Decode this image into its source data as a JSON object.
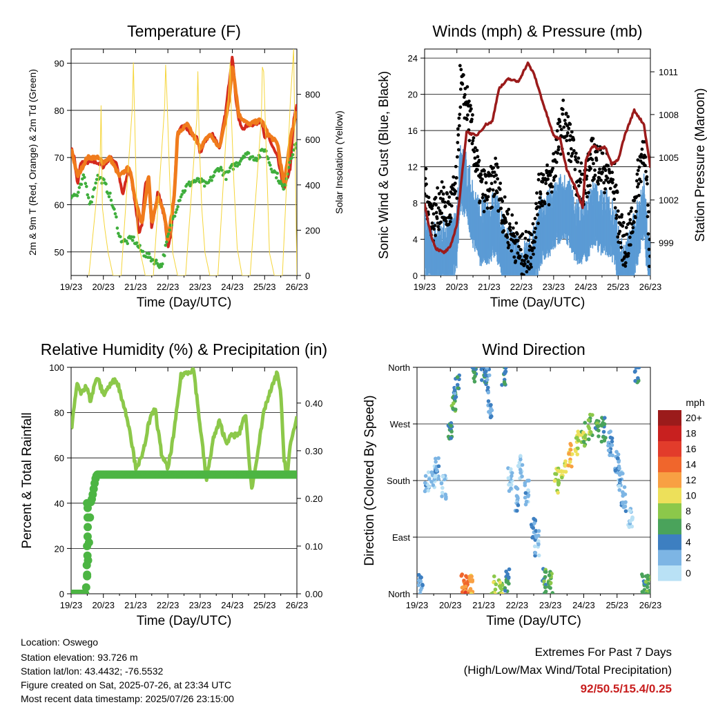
{
  "x_ticks": [
    "19/23",
    "20/23",
    "21/23",
    "22/23",
    "23/23",
    "24/23",
    "25/23",
    "26/23"
  ],
  "x_axis_label": "Time (Day/UTC)",
  "colors": {
    "temp_2m": "#d42a1e",
    "temp_9m": "#f07b1c",
    "dewpoint": "#3fae3c",
    "solar": "#f5d53a",
    "wind": "#5b9bd5",
    "gust": "#000000",
    "pressure": "#9b1b1b",
    "rh": "#8cc84a",
    "precip": "#4cb543",
    "extremes": "#c81e1e"
  },
  "chart_data": [
    {
      "type": "line",
      "title": "Temperature (F)",
      "xlabel": "Time (Day/UTC)",
      "ylabel": "2m & 9m T (Red, Orange) & 2m Td (Green)",
      "y2label": "Solar Insolation (Yellow)",
      "xlim": [
        0,
        7
      ],
      "ylim": [
        45,
        93
      ],
      "y2lim": [
        0,
        1000
      ],
      "yticks": [
        50,
        60,
        70,
        80,
        90
      ],
      "y2ticks": [
        0,
        200,
        400,
        600,
        800
      ],
      "series": [
        {
          "name": "2m T",
          "key": "temp_2m",
          "axis": "y",
          "x": [
            0,
            0.1,
            0.2,
            0.3,
            0.5,
            0.8,
            1,
            1.2,
            1.4,
            1.6,
            1.8,
            2,
            2.1,
            2.2,
            2.3,
            2.4,
            2.5,
            2.7,
            2.9,
            3,
            3.1,
            3.2,
            3.3,
            3.5,
            3.7,
            3.9,
            4,
            4.2,
            4.4,
            4.6,
            4.8,
            5,
            5.1,
            5.2,
            5.3,
            5.5,
            5.7,
            5.9,
            6,
            6.1,
            6.2,
            6.4,
            6.6,
            6.8,
            6.9,
            7
          ],
          "values": [
            72,
            70,
            64,
            69,
            69,
            69,
            68,
            70,
            69,
            62,
            68,
            60,
            54,
            56,
            64,
            66,
            55,
            63,
            57,
            51,
            54,
            63,
            75,
            77,
            75,
            74,
            71,
            74,
            75,
            72,
            80,
            92,
            83,
            78,
            76,
            77,
            77,
            78,
            74,
            75,
            73,
            70,
            63,
            68,
            78,
            81
          ]
        },
        {
          "name": "9m T",
          "key": "temp_9m",
          "axis": "y",
          "x": [
            0,
            0.2,
            0.5,
            0.8,
            1,
            1.2,
            1.5,
            1.8,
            2,
            2.2,
            2.4,
            2.5,
            2.7,
            2.9,
            3,
            3.2,
            3.3,
            3.6,
            4,
            4.3,
            4.6,
            4.9,
            5,
            5.2,
            5.5,
            5.9,
            6.1,
            6.4,
            6.6,
            6.8,
            7
          ],
          "values": [
            72,
            66,
            70,
            70,
            69,
            70,
            66,
            68,
            61,
            56,
            66,
            56,
            62,
            58,
            52,
            62,
            75,
            77,
            72,
            75,
            72,
            82,
            90,
            79,
            77,
            78,
            75,
            73,
            64,
            74,
            80
          ]
        },
        {
          "name": "2m Td",
          "key": "dewpoint",
          "axis": "y",
          "x": [
            0,
            0.2,
            0.4,
            0.6,
            0.8,
            1,
            1.2,
            1.4,
            1.5,
            1.7,
            1.9,
            2,
            2.2,
            2.4,
            2.6,
            2.8,
            3,
            3.2,
            3.4,
            3.6,
            3.8,
            4,
            4.2,
            4.4,
            4.6,
            4.8,
            5,
            5.2,
            5.4,
            5.6,
            5.8,
            6,
            6.2,
            6.4,
            6.6,
            6.8,
            7
          ],
          "values": [
            62,
            62,
            66,
            60,
            66,
            65,
            62,
            57,
            53,
            52,
            53,
            52,
            50,
            49,
            48,
            47,
            53,
            58,
            62,
            64,
            65,
            65,
            64,
            66,
            68,
            66,
            68,
            69,
            71,
            70,
            70,
            72,
            68,
            66,
            63,
            70,
            73
          ]
        },
        {
          "name": "Solar Insolation",
          "key": "solar",
          "axis": "y2",
          "x": [
            0.55,
            0.9,
            0.93,
            0.97,
            1.05,
            1.15,
            1.3,
            1.55,
            1.9,
            1.93,
            1.97,
            2.05,
            2.15,
            2.3,
            2.55,
            2.9,
            2.93,
            2.97,
            3.05,
            3.15,
            3.3,
            3.55,
            3.9,
            3.93,
            3.97,
            4.05,
            4.15,
            4.3,
            4.55,
            4.9,
            4.93,
            4.97,
            5.05,
            5.15,
            5.3,
            5.55,
            5.9,
            5.93,
            5.97,
            6.05,
            6.15,
            6.3,
            6.55,
            6.8,
            6.9,
            7
          ],
          "values": [
            0,
            500,
            750,
            300,
            200,
            100,
            0,
            0,
            750,
            940,
            700,
            200,
            100,
            0,
            0,
            750,
            930,
            800,
            450,
            100,
            0,
            0,
            700,
            900,
            600,
            300,
            100,
            0,
            0,
            850,
            940,
            700,
            400,
            120,
            0,
            0,
            700,
            920,
            900,
            550,
            100,
            0,
            0,
            780,
            1000,
            0
          ]
        }
      ]
    },
    {
      "type": "scatter",
      "title": "Winds (mph) & Pressure (mb)",
      "xlabel": "Time (Day/UTC)",
      "ylabel": "Sonic Wind & Gust (Blue, Black)",
      "y2label": "Station Pressure (Maroon)",
      "xlim": [
        0,
        7
      ],
      "ylim": [
        0,
        25
      ],
      "y2lim": [
        996.7,
        1012.6
      ],
      "yticks": [
        0,
        4,
        8,
        12,
        16,
        20,
        24
      ],
      "y2ticks": [
        999,
        1002,
        1005,
        1008,
        1011
      ],
      "series": [
        {
          "name": "Gust",
          "key": "gust",
          "x": [
            0,
            0.25,
            0.5,
            0.75,
            1,
            1.1,
            1.3,
            1.5,
            1.7,
            2,
            2.2,
            2.5,
            2.8,
            3,
            3.3,
            3.6,
            3.9,
            4.1,
            4.3,
            4.5,
            4.7,
            5,
            5.2,
            5.5,
            5.7,
            5.9,
            6,
            6.2,
            6.4,
            6.6,
            6.8,
            7
          ],
          "values": [
            10,
            6,
            8,
            7,
            10,
            21,
            19,
            15,
            10,
            9,
            11,
            6,
            4,
            2,
            3,
            10,
            10,
            14,
            17,
            15,
            11,
            10,
            13,
            12,
            11,
            10,
            6,
            3,
            5,
            10,
            15,
            1
          ]
        },
        {
          "name": "Wind",
          "key": "wind",
          "x": [
            0,
            0.25,
            0.5,
            0.75,
            1,
            1.1,
            1.3,
            1.5,
            1.7,
            2,
            2.2,
            2.5,
            2.8,
            3,
            3.3,
            3.6,
            3.9,
            4.1,
            4.3,
            4.5,
            4.7,
            5,
            5.2,
            5.5,
            5.7,
            5.9,
            6,
            6.2,
            6.4,
            6.6,
            6.8,
            7
          ],
          "values": [
            5,
            3,
            4,
            4,
            5,
            12,
            11,
            8,
            6,
            6,
            7,
            3,
            2,
            1,
            2,
            6,
            7,
            8,
            9,
            8,
            6,
            6,
            8,
            7,
            7,
            6,
            3,
            1,
            3,
            6,
            9,
            0.5
          ]
        },
        {
          "name": "Station Pressure",
          "key": "pressure",
          "x": [
            0,
            0.2,
            0.35,
            0.6,
            0.8,
            1,
            1.3,
            1.6,
            1.9,
            2.1,
            2.3,
            2.6,
            2.9,
            3.2,
            3.4,
            3.7,
            4,
            4.2,
            4.4,
            4.7,
            4.9,
            5,
            5.2,
            5.4,
            5.6,
            5.8,
            6,
            6.2,
            6.5,
            6.8,
            7
          ],
          "values": [
            1001.7,
            999.5,
            998.6,
            998.3,
            998.7,
            1000.3,
            1006.8,
            1006.5,
            1007.3,
            1007.5,
            1009.8,
            1010.5,
            1010.3,
            1011.6,
            1010.8,
            1008.6,
            1006.5,
            1006.3,
            1004.2,
            1002.8,
            1001.5,
            1004.8,
            1005.8,
            1005.6,
            1005.7,
            1004.5,
            1004.8,
            1006.5,
            1008.3,
            1007.3,
            1004.3
          ]
        }
      ]
    },
    {
      "type": "line",
      "title": "Relative Humidity (%) & Precipitation (in)",
      "xlabel": "Time (Day/UTC)",
      "ylabel": "Percent & Total Rainfall",
      "xlim": [
        0,
        7
      ],
      "ylim": [
        0,
        100
      ],
      "y2lim": [
        0,
        0.475
      ],
      "yticks": [
        0,
        20,
        40,
        60,
        80,
        100
      ],
      "y2ticks": [
        "0.00",
        "0.10",
        "0.20",
        "0.30",
        "0.40"
      ],
      "series": [
        {
          "name": "Relative Humidity",
          "key": "rh",
          "axis": "y",
          "x": [
            0,
            0.1,
            0.2,
            0.3,
            0.5,
            0.6,
            0.8,
            1,
            1.2,
            1.4,
            1.6,
            1.8,
            2,
            2.2,
            2.4,
            2.6,
            2.8,
            3,
            3.2,
            3.4,
            3.6,
            3.8,
            4,
            4.2,
            4.4,
            4.6,
            4.8,
            5,
            5.2,
            5.4,
            5.6,
            5.8,
            6,
            6.2,
            6.4,
            6.5,
            6.6,
            6.7,
            6.8,
            6.9,
            7
          ],
          "values": [
            72,
            83,
            94,
            88,
            92,
            85,
            96,
            88,
            92,
            95,
            85,
            74,
            56,
            60,
            75,
            82,
            62,
            55,
            72,
            96,
            98,
            99,
            74,
            50,
            68,
            76,
            67,
            70,
            70,
            80,
            46,
            64,
            82,
            90,
            98,
            88,
            60,
            52,
            66,
            72,
            78
          ]
        },
        {
          "name": "Total Rainfall",
          "key": "precip",
          "axis": "y2",
          "x": [
            0,
            0.1,
            0.3,
            0.45,
            0.5,
            0.55,
            0.6,
            0.65,
            0.7,
            0.75,
            0.8,
            7
          ],
          "values": [
            0,
            0,
            0,
            0,
            0.04,
            0.1,
            0.19,
            0.2,
            0.22,
            0.24,
            0.25,
            0.25
          ]
        }
      ]
    },
    {
      "type": "scatter",
      "title": "Wind Direction",
      "xlabel": "Time (Day/UTC)",
      "ylabel": "Direction (Colored By Speed)",
      "xlim": [
        0,
        7
      ],
      "ylim": [
        0,
        360
      ],
      "yticks": [
        "North",
        "East",
        "South",
        "West",
        "North"
      ],
      "colorbar_title": "mph",
      "colorbar_labels": [
        "20+",
        "18",
        "16",
        "14",
        "12",
        "10",
        "8",
        "6",
        "4",
        "2",
        "0"
      ],
      "colorbar_colors": [
        "#9b1b1b",
        "#c8201f",
        "#e23c2b",
        "#f0662c",
        "#f8a043",
        "#ede05a",
        "#8cc84a",
        "#4aa35b",
        "#3d7fc1",
        "#7db5e4",
        "#b9e1f5"
      ],
      "x": [
        0.1,
        0.3,
        0.5,
        0.6,
        0.8,
        1,
        1.1,
        1.2,
        1.4,
        1.5,
        1.6,
        1.7,
        2,
        2.1,
        2.2,
        2.3,
        2.5,
        2.6,
        2.7,
        2.8,
        3,
        3.1,
        3.3,
        3.5,
        3.6,
        3.8,
        4,
        4.2,
        4.4,
        4.6,
        4.8,
        5,
        5.2,
        5.4,
        5.6,
        5.8,
        6,
        6.1,
        6.2,
        6.4,
        6.6,
        6.8,
        6.9
      ],
      "values": [
        10,
        180,
        185,
        200,
        170,
        260,
        310,
        330,
        15,
        20,
        10,
        350,
        355,
        340,
        300,
        10,
        5,
        350,
        20,
        180,
        150,
        200,
        160,
        100,
        80,
        20,
        20,
        180,
        200,
        220,
        240,
        255,
        265,
        270,
        260,
        240,
        210,
        180,
        150,
        120,
        355,
        15,
        10
      ],
      "speeds": [
        3,
        2,
        1,
        2,
        1,
        5,
        6,
        4,
        13,
        14,
        12,
        5,
        5,
        4,
        3,
        9,
        8,
        4,
        5,
        1,
        2,
        1,
        2,
        3,
        2,
        6,
        7,
        9,
        10,
        11,
        9,
        8,
        8,
        6,
        5,
        3,
        3,
        2,
        2,
        1,
        4,
        5,
        6
      ]
    }
  ],
  "panel_x_labels": {
    "temperature": [
      "19/23",
      "20/23",
      "21/23",
      "22/23",
      "23/23",
      "24/23",
      "25/23",
      "26/23"
    ],
    "winds": [
      "19/23",
      "20/23",
      "21/23",
      "22/23",
      "23/23",
      "24/23",
      "25/23",
      "26/23"
    ],
    "humidity": [
      "19/23",
      "20/23",
      "21/23",
      "22/23",
      "23/23",
      "24/23",
      "25/23",
      "26/23"
    ],
    "direction": [
      "19/23",
      "20/23",
      "21/23",
      "22/23",
      "23/23",
      "24/23",
      "25/23",
      "26/23"
    ]
  },
  "station_info": {
    "location": "Location: Oswego",
    "elevation": "Station elevation: 93.726 m",
    "latlon": "Station lat/lon: 43.4432; -76.5532",
    "created": "Figure created on Sat, 2025-07-26, at 23:34 UTC",
    "latest": "Most recent data timestamp: 2025/07/26 23:15:00"
  },
  "extremes": {
    "title": "Extremes For Past 7 Days",
    "subtitle": "(High/Low/Max Wind/Total Precipitation)",
    "values": "92/50.5/15.4/0.25"
  }
}
